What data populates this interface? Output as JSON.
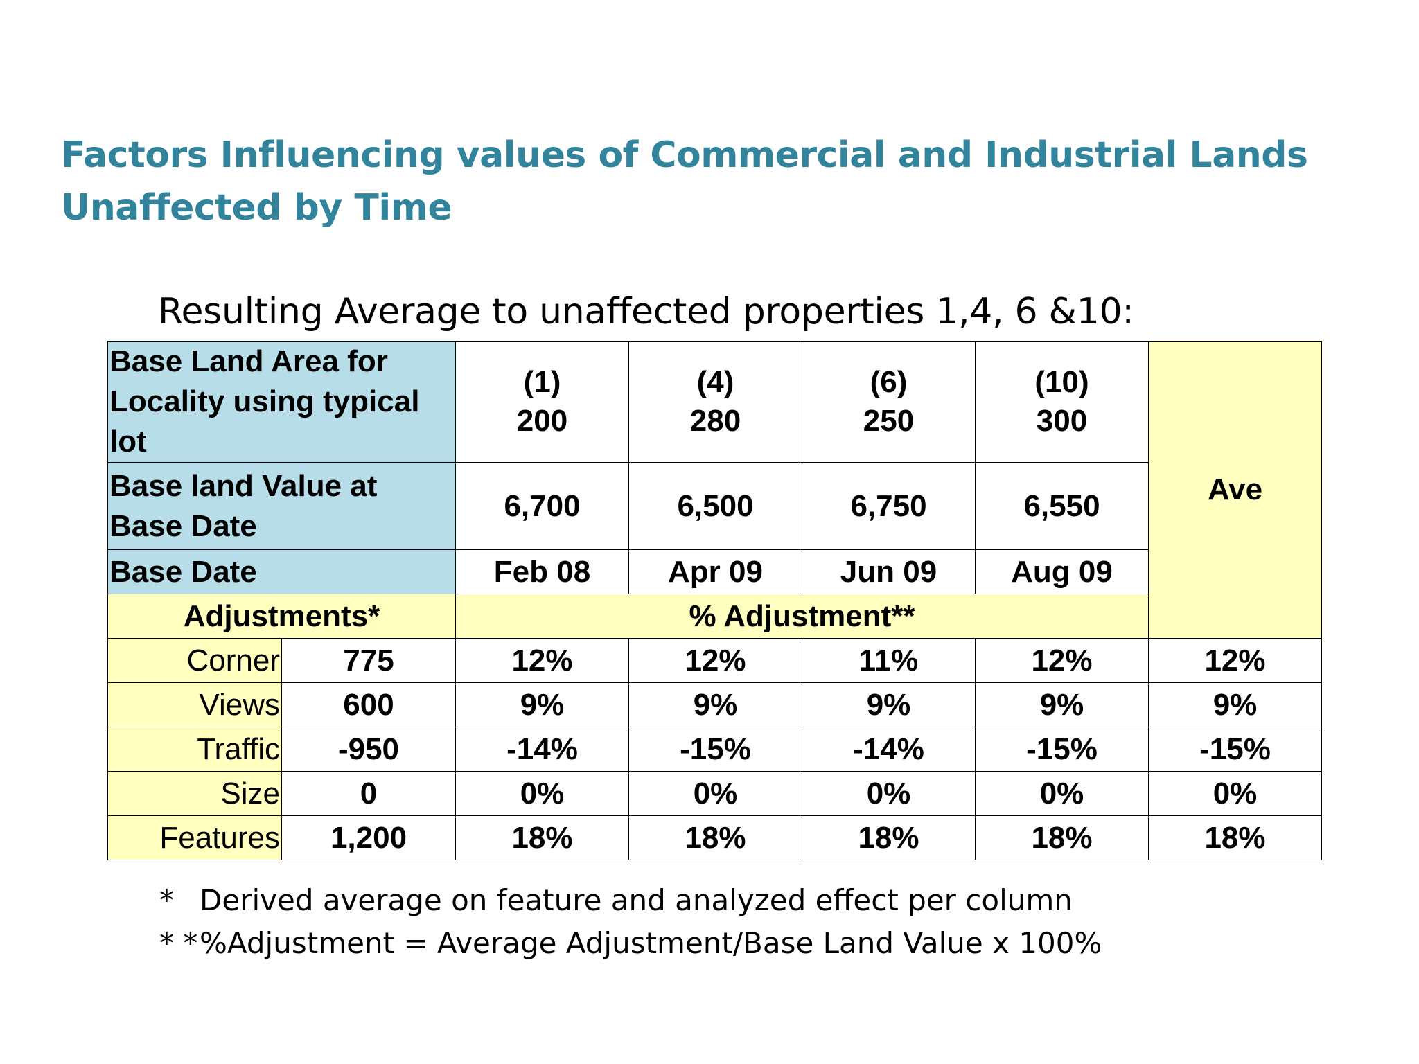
{
  "title": {
    "line1": "Factors Influencing values of Commercial and Industrial Lands",
    "line2": "Unaffected by Time"
  },
  "subtitle": "Resulting Average to unaffected properties 1,4, 6 &10:",
  "table": {
    "base_area_label": "Base Land Area for Locality using typical lot",
    "base_value_label": "Base land Value at Base Date",
    "base_date_label": "Base Date",
    "adjustments_label": "Adjustments*",
    "pct_adjustment_label": "% Adjustment**",
    "ave_label": "Ave",
    "properties": [
      {
        "id": "(1)",
        "area": "200",
        "value": "6,700",
        "date": "Feb 08"
      },
      {
        "id": "(4)",
        "area": "280",
        "value": "6,500",
        "date": "Apr 09"
      },
      {
        "id": "(6)",
        "area": "250",
        "value": "6,750",
        "date": "Jun 09"
      },
      {
        "id": "(10)",
        "area": "300",
        "value": "6,550",
        "date": "Aug 09"
      }
    ],
    "rows": [
      {
        "factor": "Corner",
        "adjustment": "775",
        "pcts": [
          "12%",
          "12%",
          "11%",
          "12%"
        ],
        "ave": "12%"
      },
      {
        "factor": "Views",
        "adjustment": "600",
        "pcts": [
          "9%",
          "9%",
          "9%",
          "9%"
        ],
        "ave": "9%"
      },
      {
        "factor": "Traffic",
        "adjustment": "-950",
        "pcts": [
          "-14%",
          "-15%",
          "-14%",
          "-15%"
        ],
        "ave": "-15%"
      },
      {
        "factor": "Size",
        "adjustment": "0",
        "pcts": [
          "0%",
          "0%",
          "0%",
          "0%"
        ],
        "ave": "0%"
      },
      {
        "factor": "Features",
        "adjustment": "1,200",
        "pcts": [
          "18%",
          "18%",
          "18%",
          "18%"
        ],
        "ave": "18%"
      }
    ]
  },
  "notes": [
    {
      "mark": "*",
      "text": "Derived average on feature and analyzed effect per column"
    },
    {
      "mark": "* *",
      "text": "%Adjustment = Average Adjustment/Base Land Value x 100%"
    }
  ]
}
